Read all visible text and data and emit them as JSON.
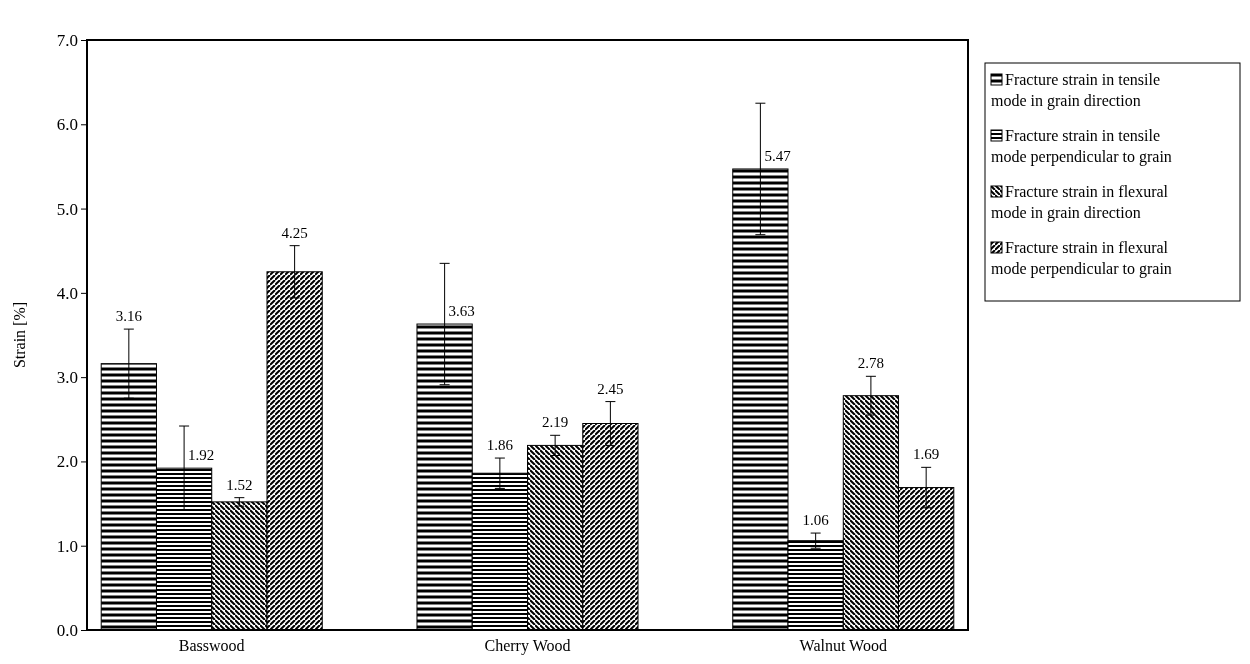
{
  "chart_data": {
    "type": "bar",
    "ylabel": "Strain [%]",
    "categories": [
      "Basswood",
      "Cherry Wood",
      "Walnut  Wood"
    ],
    "series": [
      {
        "name": "Fracture strain in tensile mode in grain direction",
        "color": "#000000",
        "values": [
          3.16,
          3.63,
          5.47
        ],
        "errors": [
          0.41,
          0.72,
          0.78
        ]
      },
      {
        "name": "Fracture strain in tensile mode perpendicular to grain",
        "color": "#000000",
        "values": [
          1.92,
          1.86,
          1.06
        ],
        "errors": [
          0.5,
          0.18,
          0.09
        ]
      },
      {
        "name": "Fracture strain in flexural mode in grain direction",
        "color": "#000000",
        "values": [
          1.52,
          2.19,
          2.78
        ],
        "errors": [
          0.05,
          0.12,
          0.23
        ]
      },
      {
        "name": "Fracture strain in flexural mode perpendicular to grain",
        "color": "#000000",
        "values": [
          4.25,
          2.45,
          1.69
        ],
        "errors": [
          0.31,
          0.26,
          0.24
        ]
      }
    ],
    "ylim": [
      0,
      7
    ],
    "yticks": [
      {
        "value": 0,
        "label": "0.0"
      },
      {
        "value": 1,
        "label": "1.0"
      },
      {
        "value": 2,
        "label": "2.0"
      },
      {
        "value": 3,
        "label": "3.0"
      },
      {
        "value": 4,
        "label": "4.0"
      },
      {
        "value": 5,
        "label": "5.0"
      },
      {
        "value": 6,
        "label": "6.0"
      },
      {
        "value": 7,
        "label": "7.0"
      }
    ],
    "data_labels": true,
    "legend": "right",
    "grid": false
  }
}
